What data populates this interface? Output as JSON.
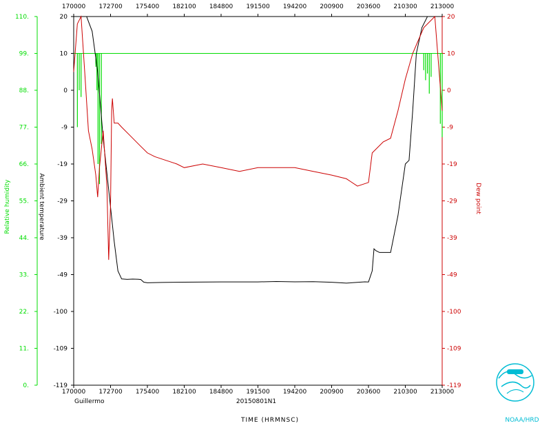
{
  "chart_data": {
    "type": "line",
    "x_ticks": [
      "170000",
      "172700",
      "175400",
      "182100",
      "184800",
      "191500",
      "194200",
      "200900",
      "203600",
      "210300",
      "213000"
    ],
    "top_x_ticks": [
      "170000",
      "172700",
      "175400",
      "182100",
      "184800",
      "191500",
      "194200",
      "200900",
      "203600",
      "210300",
      "213000"
    ],
    "xlabel": "TIME (HRMNSC)",
    "storm_name": "Guillermo",
    "flight_id": "20150801N1",
    "left_axis": {
      "label": "Relative humidity",
      "ticks": [
        "110.",
        "99.",
        "88.",
        "77.",
        "66.",
        "55.",
        "44.",
        "33.",
        "22.",
        "11.",
        "0."
      ],
      "color": "#00dd00"
    },
    "temp_axis": {
      "label": "Ambient temperature",
      "ticks": [
        "20",
        "10",
        "0",
        "-9",
        "-19",
        "-29",
        "-39",
        "-49",
        "-100",
        "-109",
        "-119"
      ],
      "color": "#000000"
    },
    "right_axis": {
      "label": "Dew point",
      "ticks": [
        "20",
        "10",
        "0",
        "-9",
        "-19",
        "-29",
        "-39",
        "-49",
        "-100",
        "-109",
        "-119"
      ],
      "color": "#cc0000"
    },
    "series": [
      {
        "color": "#000000",
        "x": [
          0,
          0.01,
          0.02,
          0.035,
          0.05,
          0.065,
          0.08,
          0.095,
          0.11,
          0.12,
          0.13,
          0.145,
          0.16,
          0.175,
          0.182,
          0.19,
          0.2,
          0.24,
          0.3,
          0.4,
          0.5,
          0.55,
          0.6,
          0.65,
          0.7,
          0.74,
          0.79,
          0.8,
          0.81,
          0.815,
          0.82,
          0.83,
          0.84,
          0.86,
          0.88,
          0.9,
          0.91,
          0.92,
          0.93,
          0.945,
          0.96,
          0.98,
          1.0
        ],
        "values": [
          20,
          20,
          20,
          20,
          16,
          5,
          -12,
          -26,
          -40,
          -48,
          -55,
          -55.6,
          -55.2,
          -55.4,
          -55.8,
          -59.5,
          -60.3,
          -59.9,
          -59.5,
          -59.1,
          -59.1,
          -58.5,
          -59.0,
          -58.7,
          -59.6,
          -60.8,
          -59.0,
          -59.2,
          -48,
          -42,
          -42.5,
          -43,
          -43,
          -43,
          -33,
          -19,
          -18,
          -5,
          10,
          17,
          20,
          20,
          20
        ]
      },
      {
        "color": "#cc0000",
        "x": [
          0.0,
          0.01,
          0.02,
          0.03,
          0.04,
          0.05,
          0.06,
          0.065,
          0.07,
          0.08,
          0.09,
          0.095,
          0.1,
          0.103,
          0.105,
          0.11,
          0.12,
          0.13,
          0.15,
          0.18,
          0.2,
          0.22,
          0.25,
          0.28,
          0.3,
          0.35,
          0.4,
          0.45,
          0.5,
          0.55,
          0.6,
          0.65,
          0.7,
          0.74,
          0.77,
          0.8,
          0.81,
          0.84,
          0.86,
          0.88,
          0.9,
          0.92,
          0.95,
          0.98,
          1.0
        ],
        "values": [
          5,
          18,
          20,
          5,
          -10,
          -15,
          -22,
          -28,
          -20,
          -10,
          -25,
          -45,
          -30,
          -5,
          -2,
          -8,
          -8,
          -9,
          -11,
          -14,
          -16,
          -17,
          -18,
          -19,
          -20,
          -19,
          -20,
          -21,
          -20,
          -20,
          -20,
          -21,
          -22,
          -23,
          -25,
          -24,
          -16,
          -13,
          -12,
          -5,
          3,
          10,
          17,
          20,
          -5
        ]
      }
    ],
    "rh_series": {
      "color": "#00dd00",
      "baseline": 99,
      "segments": [
        {
          "x": 0.01,
          "v": 77
        },
        {
          "x": 0.015,
          "v": 88
        },
        {
          "x": 0.02,
          "v": 86
        },
        {
          "x": 0.06,
          "v": 95
        },
        {
          "x": 0.063,
          "v": 88
        },
        {
          "x": 0.066,
          "v": 66
        },
        {
          "x": 0.07,
          "v": 60
        },
        {
          "x": 0.075,
          "v": 72
        },
        {
          "x": 0.95,
          "v": 94
        },
        {
          "x": 0.955,
          "v": 91
        },
        {
          "x": 0.96,
          "v": 93
        },
        {
          "x": 0.965,
          "v": 87
        },
        {
          "x": 0.97,
          "v": 92
        },
        {
          "x": 0.995,
          "v": 78
        },
        {
          "x": 1.0,
          "v": 74
        }
      ]
    }
  },
  "logo": {
    "text": "NOAA/HRD",
    "color": "#00bcd4"
  }
}
